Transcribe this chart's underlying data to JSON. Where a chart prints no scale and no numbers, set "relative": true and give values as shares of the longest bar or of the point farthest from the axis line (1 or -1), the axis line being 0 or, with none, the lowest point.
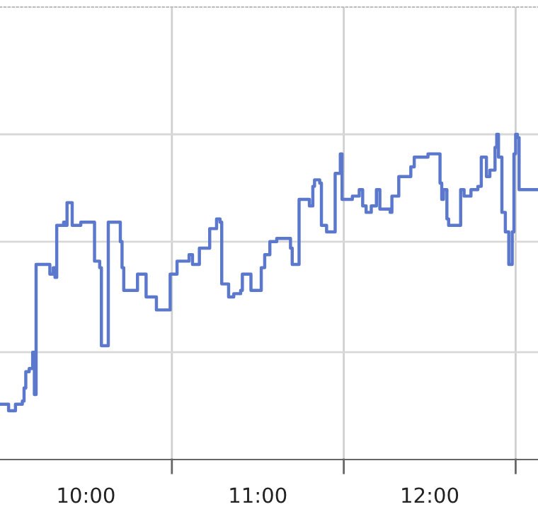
{
  "chart_data": {
    "type": "step",
    "relative": true,
    "grid": true,
    "color": "#5b78cc",
    "x": [
      9.5,
      9.55,
      9.59,
      9.63,
      9.64,
      9.65,
      9.67,
      9.69,
      9.7,
      9.71,
      9.77,
      9.79,
      9.81,
      9.82,
      9.83,
      9.87,
      9.88,
      9.89,
      9.92,
      9.97,
      10.04,
      10.05,
      10.08,
      10.09,
      10.13,
      10.18,
      10.2,
      10.21,
      10.22,
      10.29,
      10.3,
      10.35,
      10.39,
      10.41,
      10.48,
      10.49,
      10.5,
      10.53,
      10.6,
      10.62,
      10.66,
      10.72,
      10.76,
      10.78,
      10.79,
      10.83,
      10.86,
      10.9,
      10.91,
      10.95,
      10.96,
      11.0,
      11.02,
      11.04,
      11.07,
      11.11,
      11.15,
      11.19,
      11.2,
      11.23,
      11.24,
      11.3,
      11.32,
      11.33,
      11.36,
      11.37,
      11.4,
      11.41,
      11.45,
      11.48,
      11.49,
      11.52,
      11.55,
      11.59,
      11.61,
      11.63,
      11.66,
      11.69,
      11.71,
      11.77,
      11.78,
      11.82,
      11.87,
      11.89,
      11.91,
      11.97,
      11.99,
      12.04,
      12.06,
      12.07,
      12.08,
      12.1,
      12.11,
      12.15,
      12.18,
      12.2,
      12.24,
      12.28,
      12.3,
      12.33,
      12.35,
      12.38,
      12.39,
      12.4,
      12.42,
      12.44,
      12.46,
      12.48,
      12.49,
      12.5,
      12.51,
      12.52,
      12.63
    ],
    "values": [
      0.17,
      0.15,
      0.17,
      0.18,
      0.22,
      0.27,
      0.28,
      0.33,
      0.2,
      0.6,
      0.6,
      0.57,
      0.59,
      0.56,
      0.72,
      0.73,
      0.72,
      0.79,
      0.72,
      0.73,
      0.73,
      0.61,
      0.59,
      0.35,
      0.73,
      0.73,
      0.67,
      0.59,
      0.52,
      0.52,
      0.57,
      0.5,
      0.5,
      0.46,
      0.46,
      0.57,
      0.57,
      0.61,
      0.63,
      0.6,
      0.65,
      0.71,
      0.74,
      0.73,
      0.54,
      0.5,
      0.51,
      0.52,
      0.57,
      0.57,
      0.52,
      0.52,
      0.59,
      0.63,
      0.67,
      0.68,
      0.68,
      0.65,
      0.6,
      0.6,
      0.8,
      0.78,
      0.84,
      0.86,
      0.85,
      0.72,
      0.7,
      0.7,
      0.88,
      0.94,
      0.8,
      0.8,
      0.81,
      0.83,
      0.78,
      0.76,
      0.78,
      0.83,
      0.77,
      0.76,
      0.81,
      0.87,
      0.87,
      0.9,
      0.93,
      0.93,
      0.94,
      0.94,
      0.85,
      0.8,
      0.83,
      0.74,
      0.72,
      0.72,
      0.83,
      0.81,
      0.83,
      0.84,
      0.93,
      0.87,
      0.89,
      0.96,
      1.0,
      0.93,
      0.76,
      0.7,
      0.6,
      0.7,
      0.94,
      1.0,
      0.99,
      0.83,
      0.83
    ],
    "xlim": [
      9.5,
      12.63
    ],
    "ref_lines": [
      {
        "axis": "y",
        "value": 0.33,
        "color": "#d8d8d8"
      },
      {
        "axis": "y",
        "value": 0.67,
        "color": "#d8d8d8"
      },
      {
        "axis": "y",
        "value": 1,
        "color": "#d8d8d8"
      }
    ],
    "xticks": [
      {
        "value": 10,
        "label": "10:00"
      },
      {
        "value": 10.5,
        "label": null
      },
      {
        "value": 11,
        "label": "11:00"
      },
      {
        "value": 11.5,
        "label": null
      },
      {
        "value": 12,
        "label": "12:00"
      },
      {
        "value": 12.5,
        "label": null
      }
    ]
  }
}
